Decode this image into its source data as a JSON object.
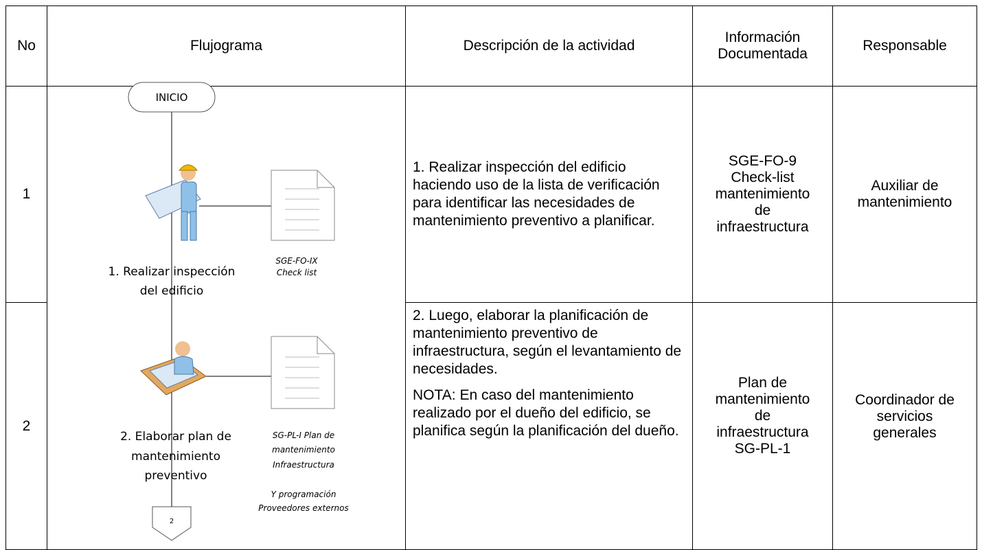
{
  "header": {
    "no": "No",
    "flowchart": "Flujograma",
    "description": "Descripción de la actividad",
    "info": [
      "Información",
      "Documentada"
    ],
    "responsible": "Responsable"
  },
  "flowchart": {
    "start": "INICIO",
    "step1": {
      "label": [
        "1. Realizar inspección",
        "del edificio"
      ],
      "document": [
        "SGE-FO-IX",
        "Check list"
      ]
    },
    "step2": {
      "label": [
        "2. Elaborar plan de",
        "mantenimiento",
        "preventivo"
      ],
      "document": [
        "SG-PL-I Plan de",
        "mantenimiento",
        "Infraestructura"
      ],
      "note": [
        "Y programación",
        "Proveedores externos"
      ]
    },
    "connector": "2"
  },
  "rows": [
    {
      "no": "1",
      "description": [
        "1. Realizar inspección del edificio haciendo uso de la lista de verificación para identificar las necesidades de mantenimiento preventivo a planificar."
      ],
      "info": [
        "SGE-FO-9",
        "Check-list",
        "mantenimiento",
        "de",
        "infraestructura"
      ],
      "responsible": [
        "Auxiliar de",
        "mantenimiento"
      ]
    },
    {
      "no": "2",
      "description": [
        "2. Luego, elaborar la planificación de mantenimiento preventivo de infraestructura, según el levantamiento de necesidades.",
        "NOTA: En caso del mantenimiento realizado por el dueño del edificio, se planifica según la planificación del dueño."
      ],
      "info": [
        "Plan de",
        "mantenimiento",
        "de",
        "infraestructura",
        "SG-PL-1"
      ],
      "responsible": [
        "Coordinador de",
        "servicios",
        "generales"
      ]
    }
  ]
}
